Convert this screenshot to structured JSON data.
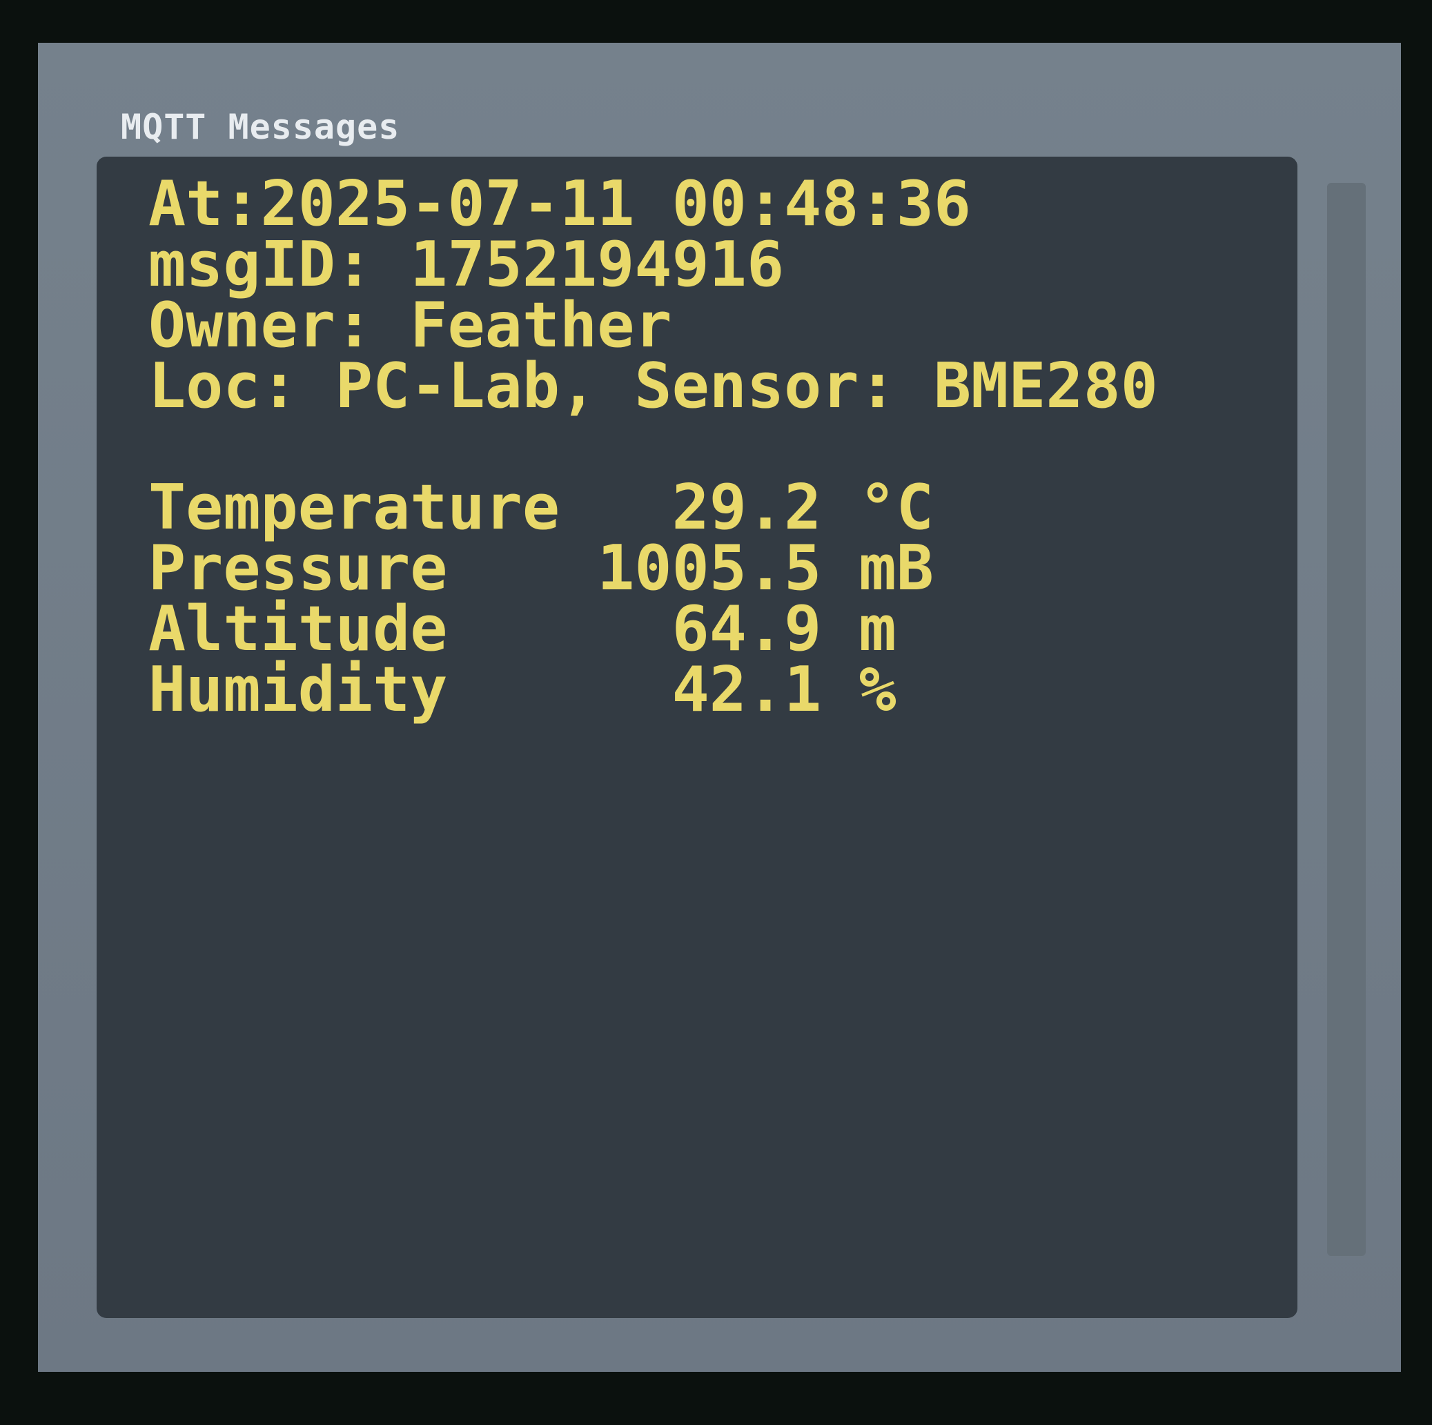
{
  "window": {
    "title": "MQTT Messages"
  },
  "message": {
    "at": "At:2025-07-11 00:48:36",
    "msg_id": "msgID: 1752194916",
    "owner": "Owner: Feather",
    "location": "Loc: PC-Lab, Sensor: BME280"
  },
  "readings": [
    {
      "line": "Temperature   29.2 °C"
    },
    {
      "line": "Pressure    1005.5 mB"
    },
    {
      "line": "Altitude      64.9 m"
    },
    {
      "line": "Humidity      42.1 %"
    }
  ],
  "colors": {
    "text": "#e9d96a",
    "panel": "#333b43",
    "frame": "#6f7b86",
    "title": "#e8ecf0"
  }
}
